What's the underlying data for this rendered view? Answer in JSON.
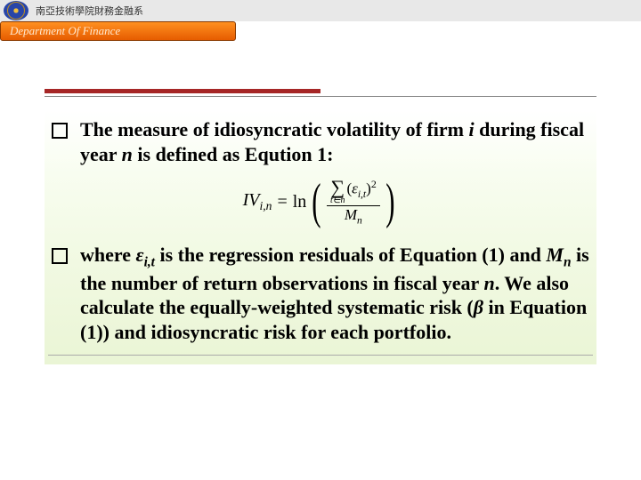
{
  "header": {
    "institution": "南亞技術學院財務金融系",
    "department": "Department Of Finance"
  },
  "bullets": [
    {
      "pre": "The measure of idiosyncratic volatility of firm ",
      "var1": "i",
      "mid": " during fiscal year ",
      "var2": "n",
      "post": " is defined as Eqution 1:"
    },
    {
      "pre": "where ",
      "eps": "ε",
      "epsSub": "i,t",
      "mid1": " is the regression residuals of Equation (1) and ",
      "mVar": "M",
      "mSub": "n",
      "mid2": " is the number of return observations in fiscal year ",
      "nVar": "n",
      "mid3": ". We also calculate the equally-weighted systematic risk (",
      "beta": "β",
      "post": " in Equation (1)) and idiosyncratic risk for each portfolio."
    }
  ],
  "equation": {
    "lhs": "IV",
    "lhsSub": "i,n",
    "op": "=",
    "fn": "ln",
    "sumBound": "t∈n",
    "eps": "ε",
    "epsSub": "i,t",
    "sqExp": "2",
    "denom": "M",
    "denomSub": "n"
  },
  "style": {
    "ruleColor": "#a62626",
    "ruleThinColor": "#888888",
    "bgGradientTop": "#ffffff",
    "bgGradientBottom": "#eaf5d5",
    "textColor": "#000000",
    "fontSizeBody": 22,
    "fontSizeEq": 20,
    "deptBarGradient": [
      "#ff9020",
      "#e65c00"
    ]
  }
}
